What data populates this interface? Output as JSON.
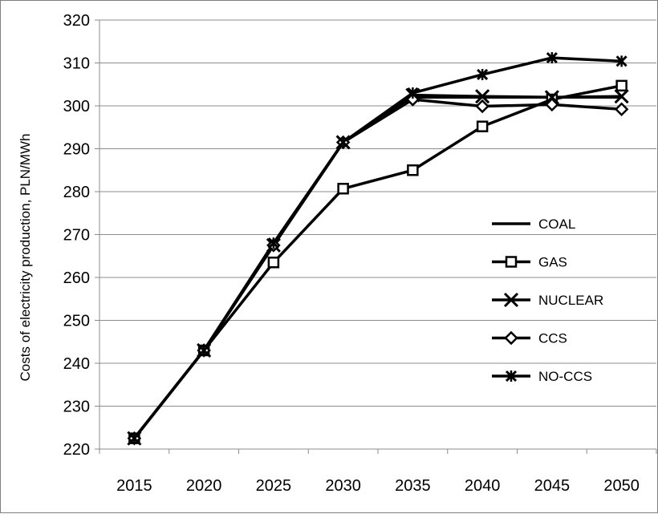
{
  "chart_data": {
    "type": "line",
    "title": "",
    "xlabel": "",
    "ylabel": "Costs of electricity production, PLN/MWh",
    "x": [
      "2015",
      "2020",
      "2025",
      "2030",
      "2035",
      "2040",
      "2045",
      "2050"
    ],
    "ylim": [
      220,
      320
    ],
    "yticks": [
      "220",
      "230",
      "240",
      "250",
      "260",
      "270",
      "280",
      "290",
      "300",
      "310",
      "320"
    ],
    "grid": true,
    "legend_position": "right",
    "series": [
      {
        "name": "COAL",
        "marker": "none",
        "values": [
          222.5,
          243,
          267.5,
          291.5,
          302,
          302,
          302,
          302
        ]
      },
      {
        "name": "GAS",
        "marker": "square",
        "values": [
          222.5,
          243,
          263.5,
          280.7,
          285,
          295.2,
          301.5,
          304.7
        ]
      },
      {
        "name": "NUCLEAR",
        "marker": "x",
        "values": [
          222.5,
          243,
          267.5,
          291.5,
          302.5,
          302.2,
          302,
          302.2
        ]
      },
      {
        "name": "CCS",
        "marker": "diamond",
        "values": [
          222.5,
          243,
          267.5,
          291.5,
          301.5,
          299.9,
          300.3,
          299.2
        ]
      },
      {
        "name": "NO-CCS",
        "marker": "star",
        "values": [
          222.5,
          243,
          268,
          291.5,
          303,
          307.3,
          311.2,
          310.4
        ]
      }
    ]
  }
}
